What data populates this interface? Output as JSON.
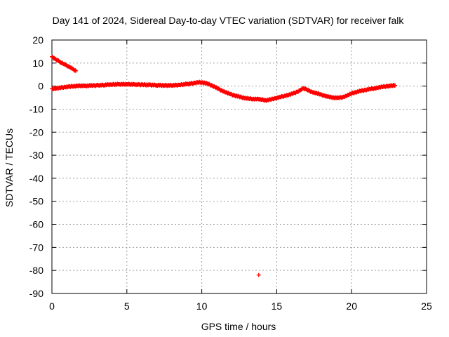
{
  "chart_data": {
    "type": "scatter",
    "title": "Day 141 of 2024, Sidereal Day-to-day VTEC variation (SDTVAR) for receiver falk",
    "xlabel": "GPS time / hours",
    "ylabel": "SDTVAR / TECUs",
    "xlim": [
      0,
      25
    ],
    "ylim": [
      -90,
      20
    ],
    "x_ticks": [
      "0",
      "5",
      "10",
      "15",
      "20",
      "25"
    ],
    "x_tick_values": [
      0,
      5,
      10,
      15,
      20,
      25
    ],
    "y_ticks": [
      "20",
      "10",
      "0",
      "-10",
      "-20",
      "-30",
      "-40",
      "-50",
      "-60",
      "-70",
      "-80",
      "-90"
    ],
    "y_tick_values": [
      20,
      10,
      0,
      -10,
      -20,
      -30,
      -40,
      -50,
      -60,
      -70,
      -80,
      -90
    ],
    "grid": true,
    "marker": "+",
    "series": [
      {
        "name": "early-arc",
        "color": "#ff0000",
        "x": [
          0.0,
          0.2,
          0.4,
          0.6,
          0.8,
          1.0,
          1.2,
          1.4,
          1.6
        ],
        "y": [
          12.8,
          11.8,
          11.0,
          10.3,
          9.6,
          8.9,
          8.2,
          7.4,
          6.6
        ]
      },
      {
        "name": "main-arc",
        "color": "#ff0000",
        "x": [
          0.0,
          0.3,
          0.6,
          0.9,
          1.2,
          1.5,
          1.7,
          2.2,
          2.6,
          3.0,
          3.5,
          4.0,
          4.5,
          5.0,
          5.5,
          6.0,
          6.5,
          7.0,
          7.5,
          8.0,
          8.5,
          9.0,
          9.5,
          9.8,
          10.1,
          10.4,
          10.7,
          11.0,
          11.3,
          11.6,
          11.9,
          12.2,
          12.5,
          12.8,
          13.1,
          13.4,
          13.7,
          14.0,
          14.3,
          14.6,
          14.9,
          15.2,
          15.5,
          15.8,
          16.1,
          16.4,
          16.6,
          16.8,
          17.0,
          17.3,
          17.6,
          17.9,
          18.2,
          18.5,
          18.8,
          19.1,
          19.4,
          19.7,
          20.0,
          20.3,
          20.6,
          20.9,
          21.2,
          21.5,
          21.8,
          22.1,
          22.4,
          22.7,
          22.9
        ],
        "y": [
          -1.2,
          -1.0,
          -0.7,
          -0.4,
          -0.2,
          0.0,
          0.1,
          0.1,
          0.2,
          0.3,
          0.5,
          0.7,
          0.8,
          0.8,
          0.7,
          0.6,
          0.5,
          0.4,
          0.3,
          0.3,
          0.5,
          0.9,
          1.3,
          1.6,
          1.5,
          1.0,
          0.2,
          -0.8,
          -1.8,
          -2.7,
          -3.5,
          -4.1,
          -4.6,
          -5.1,
          -5.4,
          -5.6,
          -5.6,
          -5.9,
          -6.2,
          -5.8,
          -5.3,
          -4.8,
          -4.3,
          -3.8,
          -3.2,
          -2.4,
          -1.6,
          -0.9,
          -1.5,
          -2.4,
          -3.0,
          -3.6,
          -4.2,
          -4.7,
          -5.0,
          -5.1,
          -4.8,
          -4.1,
          -3.2,
          -2.6,
          -2.1,
          -1.7,
          -1.3,
          -1.0,
          -0.6,
          -0.3,
          0.0,
          0.2,
          0.3
        ]
      },
      {
        "name": "outlier",
        "color": "#ff0000",
        "x": [
          13.8
        ],
        "y": [
          -82.0
        ]
      }
    ]
  }
}
